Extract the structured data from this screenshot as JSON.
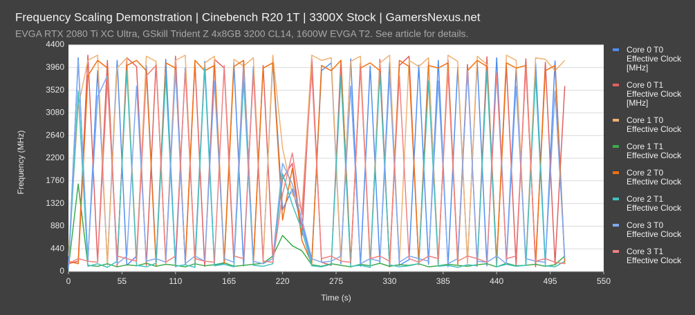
{
  "chart_data": {
    "type": "line",
    "title": "Frequency Scaling Demonstration | Cinebench R20 1T | 3300X Stock | GamersNexus.net",
    "subtitle": "EVGA RTX 2080 Ti XC Ultra, GSkill Trident Z 4x8GB 3200 CL14, 1600W EVGA T2. See article for details.",
    "x_label": "Time (s)",
    "y_label": "Frequency (MHz)",
    "xlim": [
      0,
      550
    ],
    "xticks": [
      0,
      55,
      110,
      165,
      220,
      275,
      330,
      385,
      440,
      495,
      550
    ],
    "ylim": [
      0,
      4400
    ],
    "yticks": [
      0,
      440,
      880,
      1320,
      1760,
      2200,
      2640,
      3080,
      3520,
      3960,
      4400
    ],
    "grid": true,
    "legend": "right",
    "x": [
      0,
      10,
      20,
      30,
      40,
      50,
      60,
      70,
      80,
      90,
      100,
      110,
      120,
      130,
      140,
      150,
      160,
      170,
      180,
      190,
      200,
      210,
      220,
      230,
      240,
      250,
      260,
      270,
      280,
      290,
      300,
      310,
      320,
      330,
      340,
      350,
      360,
      370,
      380,
      390,
      400,
      410,
      420,
      430,
      440,
      450,
      460,
      470,
      480,
      490,
      500,
      510
    ],
    "series": [
      {
        "name": "Core 0 T0 Effective Clock [MHz]",
        "color": "#4e8ef0",
        "values": [
          100,
          4150,
          200,
          3900,
          150,
          4100,
          120,
          300,
          4000,
          180,
          4120,
          90,
          3950,
          210,
          4080,
          130,
          160,
          4050,
          110,
          3980,
          240,
          4100,
          1200,
          1600,
          900,
          200,
          3900,
          4050,
          150,
          4130,
          100,
          3990,
          170,
          4060,
          120,
          230,
          4010,
          140,
          4100,
          90,
          3970,
          180,
          4080,
          110,
          4150,
          200,
          3930,
          120,
          4050,
          160,
          4090,
          200
        ]
      },
      {
        "name": "Core 0 T1 Effective Clock [MHz]",
        "color": "#e06060",
        "values": [
          150,
          200,
          4200,
          180,
          4100,
          90,
          4150,
          3980,
          120,
          4060,
          200,
          4180,
          130,
          4050,
          100,
          4120,
          3950,
          170,
          4080,
          140,
          4000,
          250,
          1800,
          2100,
          700,
          4150,
          180,
          120,
          4100,
          150,
          4050,
          110,
          4120,
          90,
          4000,
          4180,
          130,
          4080,
          160,
          4110,
          200,
          4020,
          100,
          4170,
          150,
          3990,
          120,
          4130,
          90,
          4060,
          150,
          3600
        ]
      },
      {
        "name": "Core 1 T0 Effective Clock",
        "color": "#f0b070",
        "values": [
          300,
          3200,
          4100,
          4200,
          120,
          3950,
          4150,
          200,
          4180,
          4080,
          150,
          4100,
          4200,
          90,
          4050,
          4180,
          220,
          4120,
          3990,
          4150,
          180,
          4200,
          2400,
          1500,
          1200,
          4200,
          4100,
          4150,
          200,
          4080,
          4180,
          130,
          4050,
          4200,
          180,
          4100,
          3980,
          4150,
          120,
          4200,
          4080,
          150,
          4180,
          4020,
          100,
          4200,
          4100,
          180,
          4150,
          4120,
          3900,
          4100
        ]
      },
      {
        "name": "Core 1 T1 Effective Clock",
        "color": "#3cab4c",
        "values": [
          80,
          1700,
          120,
          100,
          150,
          90,
          130,
          110,
          160,
          100,
          140,
          120,
          90,
          150,
          110,
          130,
          170,
          100,
          120,
          140,
          160,
          300,
          700,
          500,
          400,
          130,
          100,
          150,
          120,
          90,
          140,
          110,
          160,
          100,
          130,
          120,
          150,
          90,
          110,
          140,
          120,
          100,
          130,
          150,
          90,
          160,
          110,
          120,
          140,
          100,
          130,
          300
        ]
      },
      {
        "name": "Core 2 T0 Effective Clock",
        "color": "#f07010",
        "values": [
          200,
          150,
          3800,
          4100,
          3950,
          180,
          4000,
          4100,
          3900,
          120,
          4050,
          3950,
          180,
          4100,
          3900,
          4000,
          150,
          3980,
          4100,
          200,
          3950,
          4050,
          1000,
          2000,
          600,
          150,
          4000,
          3900,
          4100,
          180,
          3950,
          4050,
          3900,
          120,
          4100,
          3980,
          160,
          4000,
          3950,
          4050,
          140,
          3900,
          4100,
          3980,
          200,
          4050,
          3950,
          4000,
          170,
          3900,
          4000,
          150
        ]
      },
      {
        "name": "Core 2 T1 Effective Clock",
        "color": "#40c0c0",
        "values": [
          50,
          3500,
          100,
          150,
          80,
          200,
          3900,
          120,
          90,
          160,
          3800,
          100,
          130,
          80,
          3950,
          110,
          140,
          90,
          3700,
          120,
          100,
          150,
          1900,
          1300,
          800,
          110,
          90,
          140,
          3800,
          100,
          120,
          80,
          3850,
          130,
          90,
          110,
          150,
          3700,
          100,
          120,
          80,
          130,
          110,
          3900,
          90,
          140,
          100,
          120,
          3800,
          110,
          90,
          200
        ]
      },
      {
        "name": "Core 3 T0 Effective Clock",
        "color": "#80a8f0",
        "values": [
          60,
          4100,
          250,
          3400,
          3800,
          150,
          300,
          3600,
          200,
          250,
          180,
          3900,
          150,
          300,
          200,
          3700,
          250,
          180,
          3950,
          200,
          150,
          250,
          2100,
          1700,
          1000,
          250,
          180,
          200,
          300,
          3600,
          150,
          250,
          200,
          3800,
          180,
          300,
          250,
          200,
          3700,
          150,
          250,
          3900,
          200,
          180,
          300,
          150,
          3600,
          250,
          200,
          180,
          3500,
          250
        ]
      },
      {
        "name": "Core 3 T1 Effective Clock",
        "color": "#f08080",
        "values": [
          150,
          250,
          200,
          180,
          3700,
          300,
          250,
          200,
          3800,
          4000,
          180,
          300,
          3900,
          250,
          200,
          180,
          4000,
          300,
          250,
          3850,
          200,
          180,
          1500,
          2300,
          1100,
          3900,
          250,
          300,
          200,
          180,
          3950,
          250,
          300,
          200,
          3800,
          250,
          180,
          300,
          250,
          3900,
          200,
          300,
          250,
          180,
          3850,
          250,
          300,
          3950,
          200,
          250,
          180,
          150
        ]
      }
    ]
  }
}
